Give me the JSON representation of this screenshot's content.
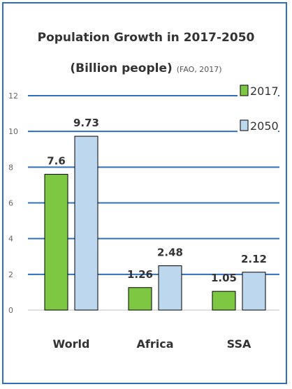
{
  "chart_data": {
    "type": "bar",
    "title": "Population Growth in 2017-2050",
    "subtitle": "(Billion people)",
    "source": "(FAO, 2017)",
    "categories": [
      "World",
      "Africa",
      "SSA"
    ],
    "series": [
      {
        "name": "2017",
        "values": [
          7.6,
          1.26,
          1.05
        ],
        "labels": [
          "7.6",
          "1.26",
          "1.05"
        ],
        "color": "#7dc742"
      },
      {
        "name": "2050",
        "values": [
          9.73,
          2.48,
          2.12
        ],
        "labels": [
          "9.73",
          "2.48",
          "2.12"
        ],
        "color": "#bdd7ee"
      }
    ],
    "ylim": [
      0,
      12
    ],
    "yticks": [
      "0",
      "2",
      "4",
      "6",
      "8",
      "10",
      "12"
    ],
    "grid": true,
    "gridColor": "#2f6fbf",
    "legendPlacement": "top-right"
  }
}
